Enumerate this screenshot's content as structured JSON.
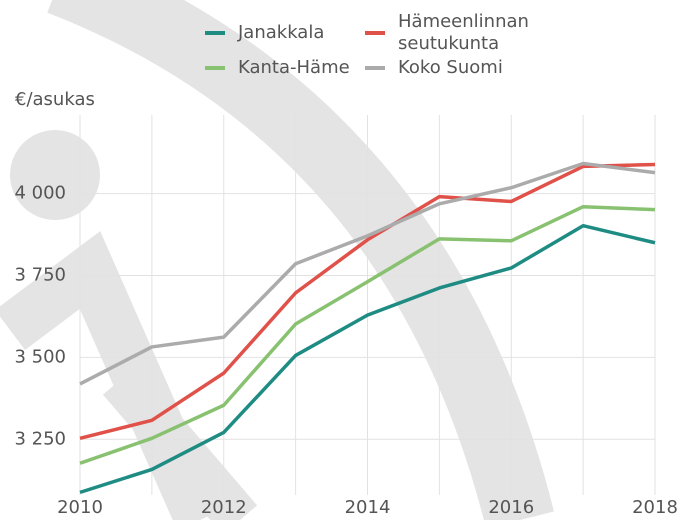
{
  "chart_data": {
    "type": "line",
    "y_label": "€/asukas",
    "x": [
      2010,
      2011,
      2012,
      2013,
      2014,
      2015,
      2016,
      2017,
      2018
    ],
    "series": [
      {
        "name": "Janakkala",
        "color": "#1f8c84",
        "values": [
          3088,
          3158,
          3271,
          3506,
          3629,
          3712,
          3773,
          3902,
          3850
        ]
      },
      {
        "name": "Hämeenlinnan seutukunta",
        "color": "#e0514a",
        "values": [
          3253,
          3308,
          3452,
          3697,
          3859,
          3991,
          3976,
          4083,
          4089
        ]
      },
      {
        "name": "Kanta-Häme",
        "color": "#88c170",
        "values": [
          3177,
          3253,
          3354,
          3602,
          3731,
          3862,
          3856,
          3960,
          3951
        ]
      },
      {
        "name": "Koko Suomi",
        "color": "#ababab",
        "values": [
          3419,
          3532,
          3562,
          3786,
          3871,
          3969,
          4018,
          4092,
          4064
        ]
      }
    ],
    "xlim": [
      2010,
      2018
    ],
    "xticks": [
      2010,
      2012,
      2014,
      2016,
      2018
    ],
    "xgrid": [
      2010,
      2011,
      2012,
      2013,
      2014,
      2015,
      2016,
      2017,
      2018
    ],
    "ylim": [
      3080,
      4240
    ],
    "yticks": [
      {
        "value": 3250,
        "label": "3 250"
      },
      {
        "value": 3500,
        "label": "3 500"
      },
      {
        "value": 3750,
        "label": "3 750"
      },
      {
        "value": 4000,
        "label": "4 000"
      }
    ],
    "grid": true
  }
}
